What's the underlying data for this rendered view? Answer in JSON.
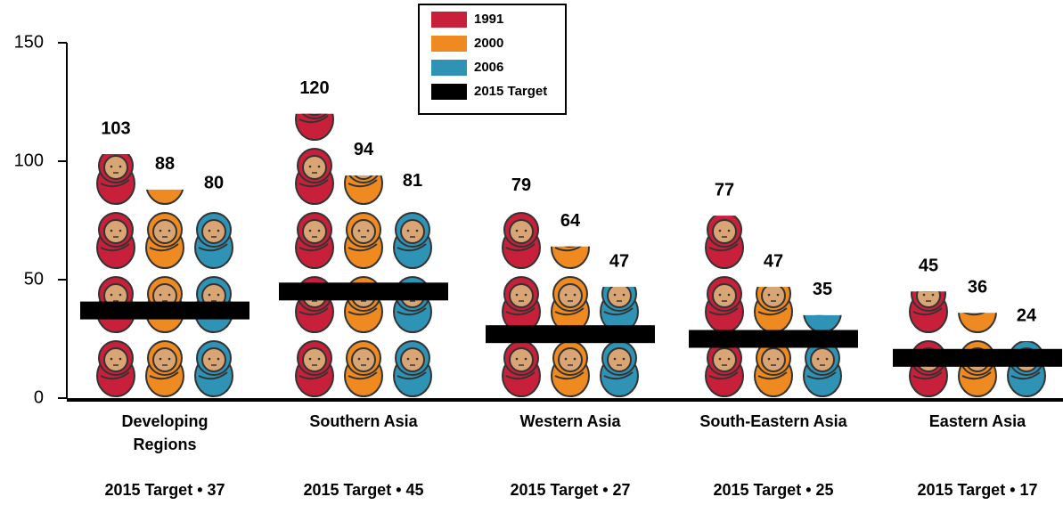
{
  "chart_data": {
    "type": "bar",
    "categories": [
      "Developing Regions",
      "Southern Asia",
      "Western Asia",
      "South-Eastern Asia",
      "Eastern Asia"
    ],
    "series": [
      {
        "name": "1991",
        "color": "#c8203a",
        "values": [
          103,
          120,
          79,
          77,
          45
        ]
      },
      {
        "name": "2000",
        "color": "#ee8a1f",
        "values": [
          88,
          94,
          64,
          47,
          36
        ]
      },
      {
        "name": "2006",
        "color": "#2f93b5",
        "values": [
          80,
          81,
          47,
          35,
          24
        ]
      }
    ],
    "target": {
      "name": "2015 Target",
      "color": "#000000",
      "values": [
        37,
        45,
        27,
        25,
        17
      ],
      "value_labels": [
        "2015 Target • 37",
        "2015 Target • 45",
        "2015 Target • 27",
        "2015 Target • 25",
        "2015 Target • 17"
      ]
    },
    "ylim": [
      0,
      150
    ],
    "yticks": [
      0,
      50,
      100,
      150
    ],
    "legend": "top"
  }
}
